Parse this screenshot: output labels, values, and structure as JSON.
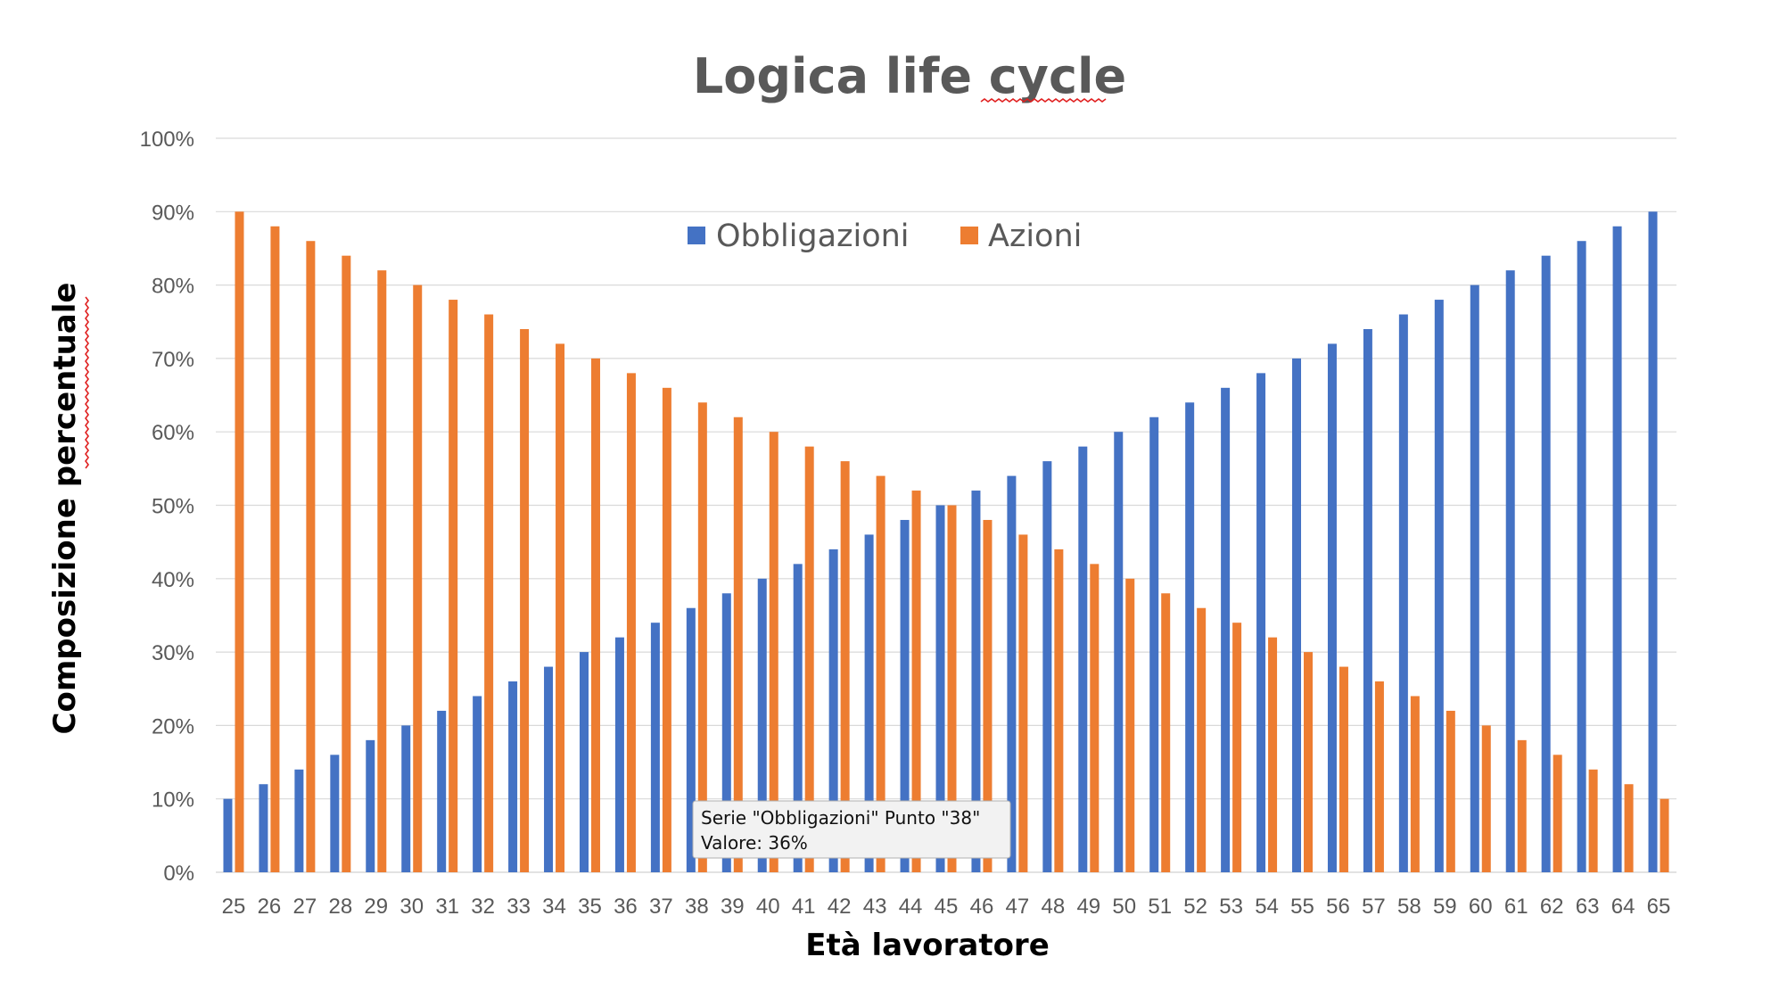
{
  "chart_data": {
    "type": "bar",
    "title": "Logica life cycle",
    "xlabel": "Età lavoratore",
    "ylabel": "Composizione percentuale",
    "ylim": [
      0,
      100
    ],
    "y_ticks": [
      "0%",
      "10%",
      "20%",
      "30%",
      "40%",
      "50%",
      "60%",
      "70%",
      "80%",
      "90%",
      "100%"
    ],
    "grid": true,
    "legend_position": "top-center",
    "categories": [
      "25",
      "26",
      "27",
      "28",
      "29",
      "30",
      "31",
      "32",
      "33",
      "34",
      "35",
      "36",
      "37",
      "38",
      "39",
      "40",
      "41",
      "42",
      "43",
      "44",
      "45",
      "46",
      "47",
      "48",
      "49",
      "50",
      "51",
      "52",
      "53",
      "54",
      "55",
      "56",
      "57",
      "58",
      "59",
      "60",
      "61",
      "62",
      "63",
      "64",
      "65"
    ],
    "series": [
      {
        "name": "Obbligazioni",
        "color": "#4472C4",
        "values": [
          10,
          12,
          14,
          16,
          18,
          20,
          22,
          24,
          26,
          28,
          30,
          32,
          34,
          36,
          38,
          40,
          42,
          44,
          46,
          48,
          50,
          52,
          54,
          56,
          58,
          60,
          62,
          64,
          66,
          68,
          70,
          72,
          74,
          76,
          78,
          80,
          82,
          84,
          86,
          88,
          90
        ]
      },
      {
        "name": "Azioni",
        "color": "#ED7D31",
        "values": [
          90,
          88,
          86,
          84,
          82,
          80,
          78,
          76,
          74,
          72,
          70,
          68,
          66,
          64,
          62,
          60,
          58,
          56,
          54,
          52,
          50,
          48,
          46,
          44,
          42,
          40,
          38,
          36,
          34,
          32,
          30,
          28,
          26,
          24,
          22,
          20,
          18,
          16,
          14,
          12,
          10
        ]
      }
    ],
    "tooltip": {
      "line1": "Serie \"Obbligazioni\" Punto \"38\"",
      "line2": "Valore: 36%"
    }
  },
  "colors": {
    "grid": "#D9D9D9",
    "axis_text": "#595959",
    "spell_underline": "#E02020"
  }
}
